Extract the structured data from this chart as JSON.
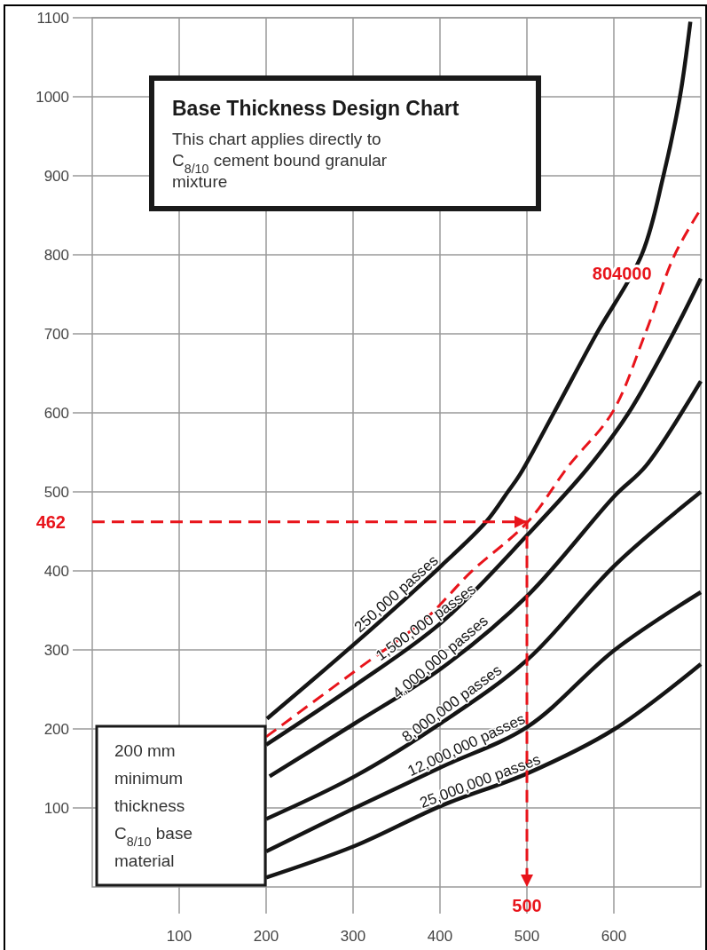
{
  "chart_data": {
    "type": "line",
    "title": "Base Thickness Design Chart",
    "subtitle": "This chart applies directly to\nC$_{8/10}$ cement bound granular\nmixture",
    "xlim": [
      0,
      700
    ],
    "ylim": [
      0,
      1100
    ],
    "xticks": [
      100,
      200,
      300,
      400,
      500,
      600
    ],
    "yticks": [
      100,
      200,
      300,
      400,
      500,
      600,
      700,
      800,
      900,
      1000,
      1100
    ],
    "grid": true,
    "series": [
      {
        "name": "250,000 passes",
        "color": "#151515",
        "line_style": "solid",
        "x": [
          201,
          302,
          402,
          453,
          478,
          492,
          531,
          580,
          632,
          657,
          676,
          688
        ],
        "values": [
          213,
          308,
          407,
          462,
          500,
          522,
          600,
          700,
          800,
          900,
          1000,
          1095
        ]
      },
      {
        "name": "804000",
        "color": "#e8141b",
        "line_style": "dashed",
        "x": [
          200,
          302,
          383,
          436,
          501,
          548,
          598,
          636,
          670,
          700
        ],
        "values": [
          190,
          273,
          339,
          399,
          462,
          533,
          600,
          700,
          800,
          858
        ]
      },
      {
        "name": "1,500,000 passes",
        "color": "#151515",
        "line_style": "solid",
        "x": [
          200,
          302,
          402,
          501,
          570,
          617,
          668,
          700
        ],
        "values": [
          180,
          255,
          335,
          446,
          530,
          600,
          700,
          770
        ]
      },
      {
        "name": "4,000,000 passes",
        "color": "#151515",
        "line_style": "solid",
        "x": [
          204,
          302,
          402,
          501,
          601,
          637,
          700
        ],
        "values": [
          140,
          207,
          277,
          369,
          495,
          533,
          640
        ]
      },
      {
        "name": "8,000,000 passes",
        "color": "#151515",
        "line_style": "solid",
        "x": [
          200,
          302,
          402,
          501,
          601,
          700
        ],
        "values": [
          86,
          140,
          208,
          288,
          407,
          500
        ]
      },
      {
        "name": "12,000,000 passes",
        "color": "#151515",
        "line_style": "solid",
        "x": [
          200,
          302,
          402,
          501,
          601,
          700
        ],
        "values": [
          45,
          100,
          152,
          203,
          300,
          373
        ]
      },
      {
        "name": "25,000,000 passes",
        "color": "#151515",
        "line_style": "solid",
        "x": [
          200,
          302,
          402,
          501,
          601,
          700
        ],
        "values": [
          12,
          52,
          103,
          144,
          200,
          282
        ]
      },
      {
        "color": "#e8141b",
        "line_style": "dashed",
        "x": [
          0,
          500,
          500
        ],
        "values": [
          462,
          462,
          0
        ]
      }
    ],
    "annotations": [
      {
        "text": "462",
        "x": 0,
        "y": 462
      },
      {
        "text": "500",
        "x": 500,
        "y": 0
      },
      "200 mm\nminimum\nthickness\nC$_{8/10}$ base\nmaterial"
    ]
  }
}
